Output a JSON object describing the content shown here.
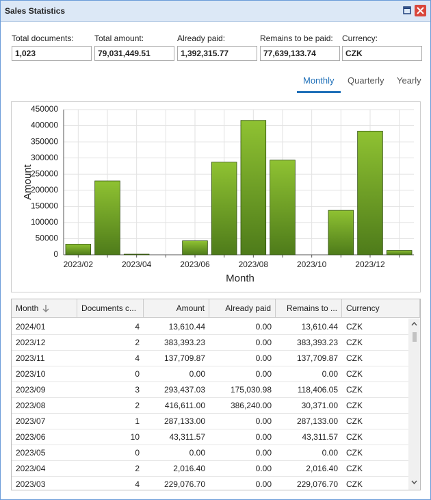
{
  "window": {
    "title": "Sales Statistics"
  },
  "fields": [
    {
      "label": "Total documents:",
      "value": "1,023"
    },
    {
      "label": "Total amount:",
      "value": "79,031,449.51"
    },
    {
      "label": "Already paid:",
      "value": "1,392,315.77"
    },
    {
      "label": "Remains to be paid:",
      "value": "77,639,133.74"
    },
    {
      "label": "Currency:",
      "value": "CZK"
    }
  ],
  "tabs": [
    "Monthly",
    "Quarterly",
    "Yearly"
  ],
  "chart_data": {
    "type": "bar",
    "categories": [
      "2023/02",
      null,
      "2023/04",
      null,
      "2023/06",
      null,
      "2023/08",
      null,
      "2023/10",
      null,
      "2023/12",
      null
    ],
    "values": [
      33000,
      229076.7,
      2016.4,
      0,
      43311.57,
      287133,
      416611,
      293437.03,
      0,
      137709.87,
      383393.23,
      13610.44
    ],
    "color": "#7aad28",
    "xlabel": "Month",
    "ylabel": "Amount",
    "ylim": [
      0,
      450000
    ],
    "yticks": [
      0,
      50000,
      100000,
      150000,
      200000,
      250000,
      300000,
      350000,
      400000,
      450000
    ],
    "grid": true
  },
  "table": {
    "columns": [
      "Month",
      "Documents c...",
      "Amount",
      "Already paid",
      "Remains to ...",
      "Currency"
    ],
    "rows": [
      [
        "2024/01",
        "4",
        "13,610.44",
        "0.00",
        "13,610.44",
        "CZK"
      ],
      [
        "2023/12",
        "2",
        "383,393.23",
        "0.00",
        "383,393.23",
        "CZK"
      ],
      [
        "2023/11",
        "4",
        "137,709.87",
        "0.00",
        "137,709.87",
        "CZK"
      ],
      [
        "2023/10",
        "0",
        "0.00",
        "0.00",
        "0.00",
        "CZK"
      ],
      [
        "2023/09",
        "3",
        "293,437.03",
        "175,030.98",
        "118,406.05",
        "CZK"
      ],
      [
        "2023/08",
        "2",
        "416,611.00",
        "386,240.00",
        "30,371.00",
        "CZK"
      ],
      [
        "2023/07",
        "1",
        "287,133.00",
        "0.00",
        "287,133.00",
        "CZK"
      ],
      [
        "2023/06",
        "10",
        "43,311.57",
        "0.00",
        "43,311.57",
        "CZK"
      ],
      [
        "2023/05",
        "0",
        "0.00",
        "0.00",
        "0.00",
        "CZK"
      ],
      [
        "2023/04",
        "2",
        "2,016.40",
        "0.00",
        "2,016.40",
        "CZK"
      ],
      [
        "2023/03",
        "4",
        "229,076.70",
        "0.00",
        "229,076.70",
        "CZK"
      ]
    ]
  }
}
